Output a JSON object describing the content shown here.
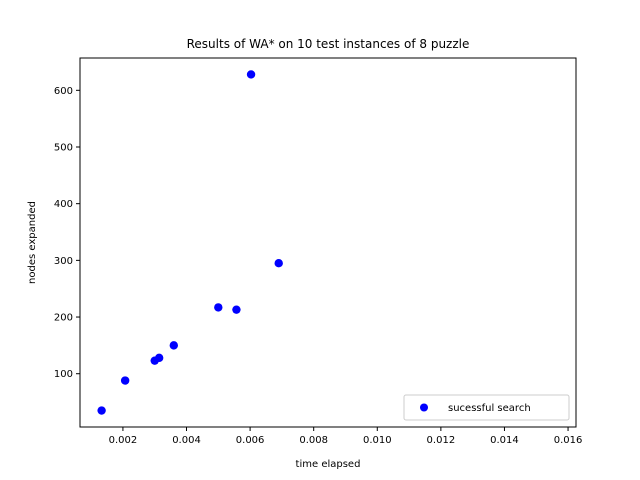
{
  "chart_data": {
    "type": "scatter",
    "title": "Results of WA* on 10 test instances of 8 puzzle",
    "xlabel": "time elapsed",
    "ylabel": "nodes expanded",
    "xlim": [
      0.00065,
      0.01625
    ],
    "ylim": [
      6,
      657
    ],
    "xticks": [
      0.002,
      0.004,
      0.006,
      0.008,
      0.01,
      0.012,
      0.014,
      0.016
    ],
    "xtick_labels": [
      "0.002",
      "0.004",
      "0.006",
      "0.008",
      "0.010",
      "0.012",
      "0.014",
      "0.016"
    ],
    "yticks": [
      100,
      200,
      300,
      400,
      500,
      600
    ],
    "ytick_labels": [
      "100",
      "200",
      "300",
      "400",
      "500",
      "600"
    ],
    "grid": false,
    "legend_position": "lower-right",
    "series": [
      {
        "name": "sucessful search",
        "color": "#0000ff",
        "marker": "circle",
        "points": [
          {
            "x": 0.00133,
            "y": 35
          },
          {
            "x": 0.00207,
            "y": 88
          },
          {
            "x": 0.003,
            "y": 123
          },
          {
            "x": 0.00314,
            "y": 128
          },
          {
            "x": 0.0036,
            "y": 150
          },
          {
            "x": 0.005,
            "y": 217
          },
          {
            "x": 0.00557,
            "y": 213
          },
          {
            "x": 0.0069,
            "y": 295
          },
          {
            "x": 0.00603,
            "y": 628
          }
        ]
      }
    ]
  }
}
